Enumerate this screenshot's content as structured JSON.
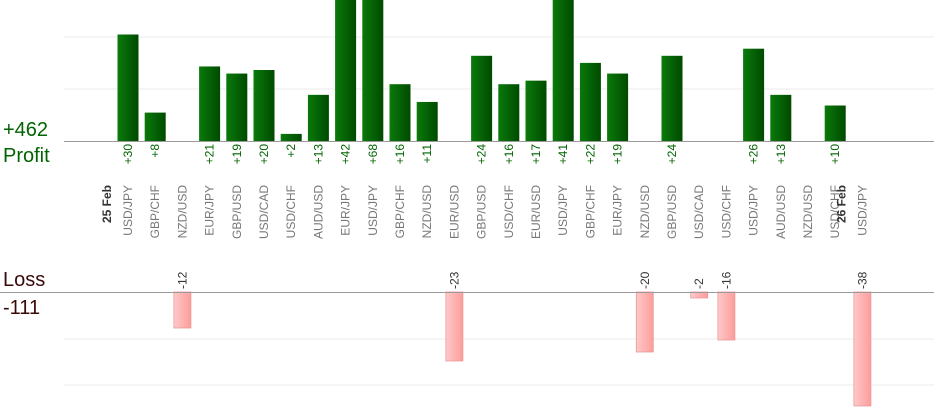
{
  "summary": {
    "profit_total": "+462",
    "profit_label": "Profit",
    "loss_label": "Loss",
    "loss_total": "-111"
  },
  "chart_data": {
    "type": "bar",
    "title": "",
    "xlabel": "",
    "ylabel": "",
    "categories": [
      "USD/JPY",
      "GBP/CHF",
      "NZD/USD",
      "EUR/JPY",
      "GBP/USD",
      "USD/CAD",
      "USD/CHF",
      "AUD/USD",
      "EUR/JPY",
      "USD/JPY",
      "GBP/CHF",
      "NZD/USD",
      "EUR/USD",
      "GBP/USD",
      "USD/CHF",
      "EUR/USD",
      "USD/JPY",
      "GBP/CHF",
      "EUR/JPY",
      "NZD/USD",
      "GBP/USD",
      "USD/CAD",
      "USD/CHF",
      "USD/JPY",
      "AUD/USD",
      "NZD/USD",
      "USD/CHF",
      "USD/JPY"
    ],
    "date_markers": [
      {
        "index": 0,
        "label": "25 Feb"
      },
      {
        "index": 27,
        "label": "26 Feb"
      }
    ],
    "series": [
      {
        "name": "Profit",
        "color": "#006400",
        "values": [
          30,
          8,
          null,
          21,
          19,
          20,
          2,
          13,
          42,
          68,
          16,
          11,
          null,
          24,
          16,
          17,
          41,
          22,
          19,
          null,
          24,
          null,
          null,
          26,
          13,
          null,
          10,
          null
        ],
        "labels": [
          "+30",
          "+8",
          "",
          "+21",
          "+19",
          "+20",
          "+2",
          "+13",
          "+42",
          "+68",
          "+16",
          "+11",
          "",
          "+24",
          "+16",
          "+17",
          "+41",
          "+22",
          "+19",
          "",
          "+24",
          "",
          "",
          "+26",
          "+13",
          "",
          "+10",
          ""
        ]
      },
      {
        "name": "Loss",
        "color": "#ffb0b0",
        "values": [
          null,
          null,
          -12,
          null,
          null,
          null,
          null,
          null,
          null,
          null,
          null,
          null,
          -23,
          null,
          null,
          null,
          null,
          null,
          null,
          -20,
          null,
          -2,
          -16,
          null,
          null,
          null,
          null,
          -38
        ],
        "labels": [
          "",
          "",
          "-12",
          "",
          "",
          "",
          "",
          "",
          "",
          "",
          "",
          "",
          "-23",
          "",
          "",
          "",
          "",
          "",
          "",
          "-20",
          "",
          "-2",
          "-16",
          "",
          "",
          "",
          "",
          "-38"
        ]
      }
    ],
    "grid": true
  }
}
